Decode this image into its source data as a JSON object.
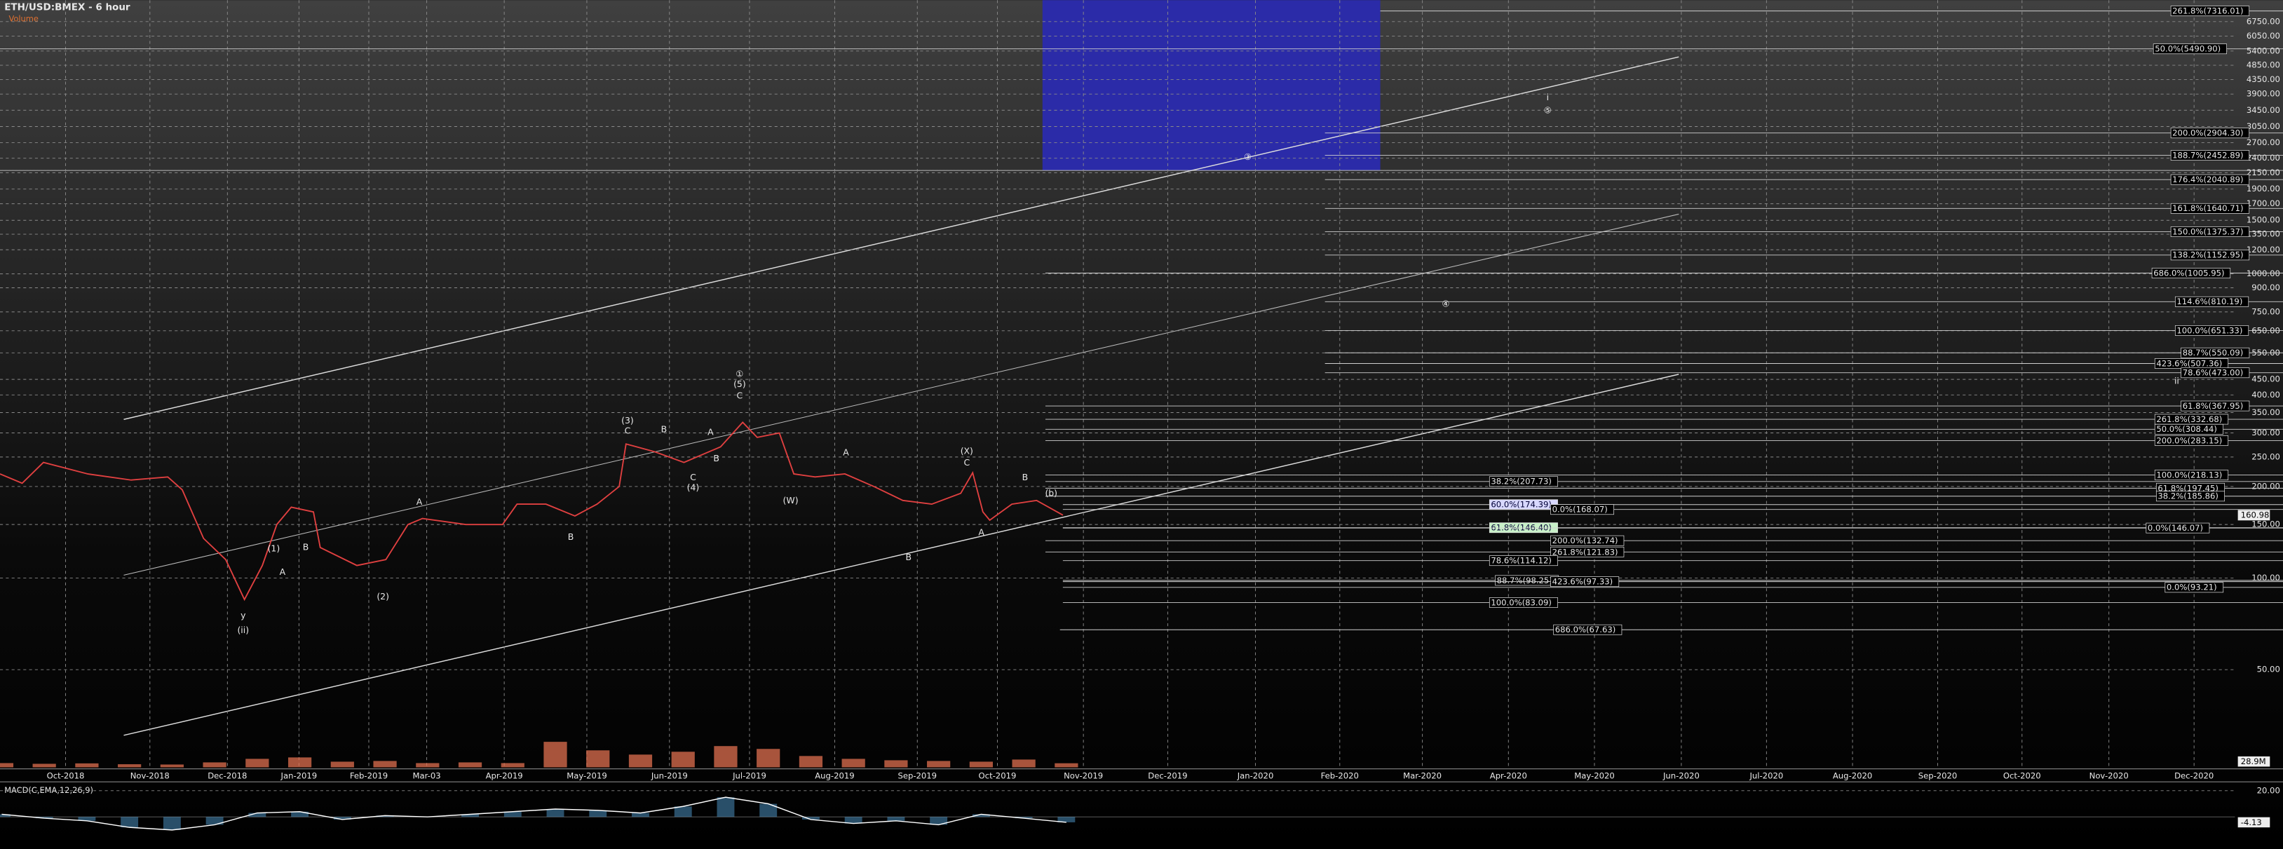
{
  "chart_data": {
    "type": "line",
    "title": "ETH/USD:BMEX - 6 hour",
    "log_scale": true,
    "grid": true,
    "xlim": [
      -0.77,
      25.47
    ],
    "ylim": [
      24.4,
      7940
    ],
    "xticks": [
      {
        "value": 0,
        "label": "Oct-2018"
      },
      {
        "value": 0.99,
        "label": "Nov-2018"
      },
      {
        "value": 1.9,
        "label": "Dec-2018"
      },
      {
        "value": 2.74,
        "label": "Jan-2019"
      },
      {
        "value": 3.56,
        "label": "Feb-2019"
      },
      {
        "value": 4.24,
        "label": "Mar-03"
      },
      {
        "value": 5.15,
        "label": "Apr-2019"
      },
      {
        "value": 6.12,
        "label": "May-2019"
      },
      {
        "value": 7.09,
        "label": "Jun-2019"
      },
      {
        "value": 8.03,
        "label": "Jul-2019"
      },
      {
        "value": 9.03,
        "label": "Aug-2019"
      },
      {
        "value": 10.0,
        "label": "Sep-2019"
      },
      {
        "value": 10.94,
        "label": "Oct-2019"
      },
      {
        "value": 11.95,
        "label": "Nov-2019"
      },
      {
        "value": 12.94,
        "label": "Dec-2019"
      },
      {
        "value": 13.97,
        "label": "Jan-2020"
      },
      {
        "value": 14.96,
        "label": "Feb-2020"
      },
      {
        "value": 15.93,
        "label": "Mar-2020"
      },
      {
        "value": 16.94,
        "label": "Apr-2020"
      },
      {
        "value": 17.95,
        "label": "May-2020"
      },
      {
        "value": 18.97,
        "label": "Jun-2020"
      },
      {
        "value": 19.97,
        "label": "Jul-2020"
      },
      {
        "value": 20.98,
        "label": "Aug-2020"
      },
      {
        "value": 21.98,
        "label": "Sep-2020"
      },
      {
        "value": 22.97,
        "label": "Oct-2020"
      },
      {
        "value": 23.99,
        "label": "Nov-2020"
      },
      {
        "value": 24.99,
        "label": "Dec-2020"
      }
    ],
    "yticks": [
      {
        "value": 50,
        "label": "50.00"
      },
      {
        "value": 100,
        "label": "100.00"
      },
      {
        "value": 150,
        "label": "150.00"
      },
      {
        "value": 200,
        "label": "200.00"
      },
      {
        "value": 250,
        "label": "250.00"
      },
      {
        "value": 300,
        "label": "300.00"
      },
      {
        "value": 350,
        "label": "350.00"
      },
      {
        "value": 400,
        "label": "400.00"
      },
      {
        "value": 450,
        "label": "450.00"
      },
      {
        "value": 550,
        "label": "550.00"
      },
      {
        "value": 650,
        "label": "650.00"
      },
      {
        "value": 750,
        "label": "750.00"
      },
      {
        "value": 900,
        "label": "900.00"
      },
      {
        "value": 1000,
        "label": "1000.00"
      },
      {
        "value": 1200,
        "label": "1200.00"
      },
      {
        "value": 1350,
        "label": "1350.00"
      },
      {
        "value": 1500,
        "label": "1500.00"
      },
      {
        "value": 1700,
        "label": "1700.00"
      },
      {
        "value": 1900,
        "label": "1900.00"
      },
      {
        "value": 2150,
        "label": "2150.00"
      },
      {
        "value": 2400,
        "label": "2400.00"
      },
      {
        "value": 2700,
        "label": "2700.00"
      },
      {
        "value": 3050,
        "label": "3050.00"
      },
      {
        "value": 3450,
        "label": "3450.00"
      },
      {
        "value": 3900,
        "label": "3900.00"
      },
      {
        "value": 4350,
        "label": "4350.00"
      },
      {
        "value": 4850,
        "label": "4850.00"
      },
      {
        "value": 5400,
        "label": "5400.00"
      },
      {
        "value": 6050,
        "label": "6050.00"
      },
      {
        "value": 6750,
        "label": "6750.00"
      }
    ],
    "series": [
      {
        "name": "ETH/USD:BMEX",
        "color": "#e04040",
        "x": [
          -0.77,
          -0.51,
          -0.26,
          0.26,
          0.77,
          1.2,
          1.37,
          1.62,
          1.88,
          2.1,
          2.31,
          2.48,
          2.65,
          2.91,
          2.99,
          3.42,
          3.76,
          4.02,
          4.19,
          4.7,
          5.13,
          5.3,
          5.64,
          5.98,
          6.24,
          6.5,
          6.58,
          6.92,
          7.26,
          7.69,
          7.95,
          8.12,
          8.38,
          8.55,
          8.8,
          9.15,
          9.49,
          9.83,
          10.17,
          10.51,
          10.65,
          10.77,
          10.85,
          11.11,
          11.4,
          11.71
        ],
        "values": [
          220,
          205,
          240,
          220,
          210,
          215,
          195,
          135,
          115,
          85,
          110,
          150,
          171,
          165,
          126,
          110,
          115,
          150,
          157,
          150,
          150,
          175,
          175,
          160,
          175,
          200,
          276,
          260,
          240,
          270,
          325,
          290,
          300,
          220,
          215,
          220,
          200,
          180,
          175,
          190,
          222,
          165,
          155,
          175,
          180,
          161
        ]
      }
    ],
    "last_price": 160.98,
    "volume": {
      "title": "Volume",
      "color": "#e07050",
      "ylim": [
        0,
        380
      ],
      "x": [
        -0.75,
        -0.25,
        0.25,
        0.75,
        1.25,
        1.75,
        2.25,
        2.75,
        3.25,
        3.75,
        4.25,
        4.75,
        5.25,
        5.75,
        6.25,
        6.75,
        7.25,
        7.75,
        8.25,
        8.75,
        9.25,
        9.75,
        10.25,
        10.75,
        11.25,
        11.75
      ],
      "values": [
        30,
        25,
        28,
        22,
        20,
        35,
        60,
        70,
        40,
        45,
        30,
        35,
        30,
        180,
        120,
        90,
        110,
        150,
        130,
        80,
        60,
        50,
        45,
        40,
        55,
        28.9
      ],
      "current": {
        "value": 28.9,
        "label": "28.9M"
      }
    },
    "macd": {
      "title": "MACD(C,EMA,12,26,9)",
      "color": "#ffffff",
      "ylim": [
        -24.4,
        25.6
      ],
      "yticks": [
        {
          "value": 20,
          "label": "20.00"
        }
      ],
      "x": [
        -0.75,
        -0.25,
        0.25,
        0.75,
        1.25,
        1.75,
        2.25,
        2.75,
        3.25,
        3.75,
        4.25,
        4.75,
        5.25,
        5.75,
        6.25,
        6.75,
        7.25,
        7.75,
        8.25,
        8.75,
        9.25,
        9.75,
        10.25,
        10.75,
        11.25,
        11.75
      ],
      "values": [
        2,
        -1,
        -3,
        -8,
        -10,
        -6,
        3,
        4,
        -2,
        1,
        0,
        2,
        4,
        6,
        5,
        3,
        8,
        15,
        10,
        -2,
        -5,
        -3,
        -6,
        2,
        -1,
        -4.13
      ],
      "current": {
        "value": -4.13,
        "label": "-4.13"
      }
    },
    "fib_levels": [
      {
        "label": "261.8%(7316.01)",
        "value": 7316.01
      },
      {
        "label": "50.0%(5490.90)",
        "value": 5490.9
      },
      {
        "label": "200.0%(2904.30)",
        "value": 2904.3
      },
      {
        "label": "188.7%(2452.89)",
        "value": 2452.89
      },
      {
        "label": "176.4%(2040.89)",
        "value": 2040.89
      },
      {
        "label": "161.8%(1640.71)",
        "value": 1640.71
      },
      {
        "label": "150.0%(1375.37)",
        "value": 1375.37
      },
      {
        "label": "138.2%(1152.95)",
        "value": 1152.95
      },
      {
        "label": "686.0%(1005.95)",
        "value": 1005.95
      },
      {
        "label": "114.6%(810.19)",
        "value": 810.19
      },
      {
        "label": "100.0%(651.33)",
        "value": 651.33
      },
      {
        "label": "88.7%(550.09)",
        "value": 550.09
      },
      {
        "label": "423.6%(507.36)",
        "value": 507.36
      },
      {
        "label": "78.6%(473.00)",
        "value": 473.0
      },
      {
        "label": "61.8%(367.95)",
        "value": 367.95
      },
      {
        "label": "261.8%(332.68)",
        "value": 332.68
      },
      {
        "label": "50.0%(308.44)",
        "value": 308.44
      },
      {
        "label": "200.0%(283.15)",
        "value": 283.15
      },
      {
        "label": "100.0%(218.13)",
        "value": 218.13
      },
      {
        "label": "38.2%(207.73)",
        "value": 207.73
      },
      {
        "label": "61.8%(197.45)",
        "value": 197.45
      },
      {
        "label": "38.2%(185.86)",
        "value": 185.86
      },
      {
        "label": "60.0%(174.39)",
        "value": 174.39
      },
      {
        "label": "0.0%(168.07)",
        "value": 168.07
      },
      {
        "label": "61.8%(146.40)",
        "value": 146.4
      },
      {
        "label": "0.0%(146.07)",
        "value": 146.07
      },
      {
        "label": "200.0%(132.74)",
        "value": 132.74
      },
      {
        "label": "261.8%(121.83)",
        "value": 121.83
      },
      {
        "label": "78.6%(114.12)",
        "value": 114.12
      },
      {
        "label": "88.7%(98.25)",
        "value": 98.25
      },
      {
        "label": "423.6%(97.33)",
        "value": 97.33
      },
      {
        "label": "0.0%(93.21)",
        "value": 93.21
      },
      {
        "label": "100.0%(83.09)",
        "value": 83.09
      },
      {
        "label": "686.0%(67.63)",
        "value": 67.63
      }
    ],
    "wave_labels": [
      "(1)",
      "A",
      "B",
      "y",
      "(ii)",
      "A",
      "(2)",
      "B",
      "(3)",
      "C",
      "B",
      "A",
      "B",
      "C",
      "(4)",
      "①",
      "(5)",
      "C",
      "A",
      "(W)",
      "B",
      "(X)",
      "C",
      "A",
      "B",
      "(b)",
      "ii",
      "i",
      "⑤",
      "④",
      "③"
    ]
  }
}
